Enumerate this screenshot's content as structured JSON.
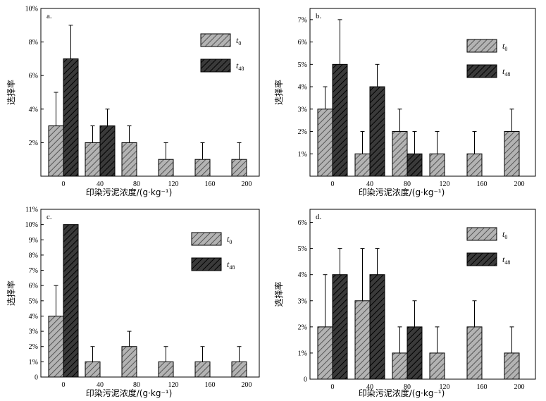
{
  "colors": {
    "t0_fill": "#b3b3b3",
    "t48_fill": "#3a3a3a",
    "t0_hatch": "#555555",
    "t48_hatch": "#000000"
  },
  "chart_data": [
    {
      "panel": "a.",
      "type": "bar",
      "xlabel": "印染污泥浓度/(g·kg⁻¹)",
      "ylabel": "选择率",
      "categories": [
        "0",
        "40",
        "80",
        "120",
        "160",
        "200"
      ],
      "ylim": [
        0,
        10
      ],
      "yticks": [
        "2%",
        "4%",
        "6%",
        "8%",
        "10%"
      ],
      "ytick_values": [
        2,
        4,
        6,
        8,
        10
      ],
      "legend": [
        {
          "t": "t",
          "sub": "0"
        },
        {
          "t": "t",
          "sub": "48"
        }
      ],
      "series": [
        {
          "values": [
            3,
            2,
            2,
            1,
            1,
            1
          ],
          "errors": [
            2,
            1,
            1,
            1,
            1,
            1
          ]
        },
        {
          "values": [
            7,
            3,
            0,
            0,
            0,
            0
          ],
          "errors": [
            2,
            1,
            0,
            0,
            0,
            0
          ]
        }
      ]
    },
    {
      "panel": "b.",
      "type": "bar",
      "xlabel": "印染污泥浓度/(g·kg⁻¹)",
      "ylabel": "选择率",
      "categories": [
        "0",
        "40",
        "80",
        "120",
        "160",
        "200"
      ],
      "ylim": [
        0,
        7.5
      ],
      "yticks": [
        "1%",
        "2%",
        "3%",
        "4%",
        "5%",
        "6%",
        "7%"
      ],
      "ytick_values": [
        1,
        2,
        3,
        4,
        5,
        6,
        7
      ],
      "legend": [
        {
          "t": "t",
          "sub": "0"
        },
        {
          "t": "t",
          "sub": "48"
        }
      ],
      "series": [
        {
          "values": [
            3,
            1,
            2,
            1,
            1,
            2
          ],
          "errors": [
            1,
            1,
            1,
            1,
            1,
            1
          ]
        },
        {
          "values": [
            5,
            4,
            1,
            0,
            0,
            0
          ],
          "errors": [
            2,
            1,
            1,
            0,
            0,
            0
          ]
        }
      ]
    },
    {
      "panel": "c.",
      "type": "bar",
      "xlabel": "印染污泥浓度/(g·kg⁻¹)",
      "ylabel": "选择率",
      "categories": [
        "0",
        "40",
        "80",
        "120",
        "160",
        "200"
      ],
      "ylim": [
        0,
        11
      ],
      "yticks": [
        "0",
        "1%",
        "2%",
        "3%",
        "4%",
        "5%",
        "6%",
        "7%",
        "8%",
        "9%",
        "10%",
        "11%"
      ],
      "ytick_values": [
        0,
        1,
        2,
        3,
        4,
        5,
        6,
        7,
        8,
        9,
        10,
        11
      ],
      "legend": [
        {
          "t": "t",
          "sub": "0"
        },
        {
          "t": "t",
          "sub": "48"
        }
      ],
      "series": [
        {
          "values": [
            4,
            1,
            2,
            1,
            1,
            1
          ],
          "errors": [
            2,
            1,
            1,
            1,
            1,
            1
          ]
        },
        {
          "values": [
            10,
            0,
            0,
            0,
            0,
            0
          ],
          "errors": [
            0,
            0,
            0,
            0,
            0,
            0
          ]
        }
      ]
    },
    {
      "panel": "d.",
      "type": "bar",
      "xlabel": "印染污泥浓度/(g·kg⁻¹)",
      "ylabel": "选择率",
      "categories": [
        "0",
        "40",
        "80",
        "120",
        "160",
        "200"
      ],
      "ylim": [
        0,
        6.5
      ],
      "yticks": [
        "0",
        "1%",
        "2%",
        "3%",
        "4%",
        "5%",
        "6%"
      ],
      "ytick_values": [
        0,
        1,
        2,
        3,
        4,
        5,
        6
      ],
      "legend": [
        {
          "t": "t",
          "sub": "0"
        },
        {
          "t": "t",
          "sub": "48"
        }
      ],
      "series": [
        {
          "values": [
            2,
            3,
            1,
            1,
            2,
            1
          ],
          "errors": [
            2,
            2,
            1,
            1,
            1,
            1
          ]
        },
        {
          "values": [
            4,
            4,
            2,
            0,
            0,
            0
          ],
          "errors": [
            1,
            1,
            1,
            0,
            0,
            0
          ]
        }
      ]
    }
  ]
}
